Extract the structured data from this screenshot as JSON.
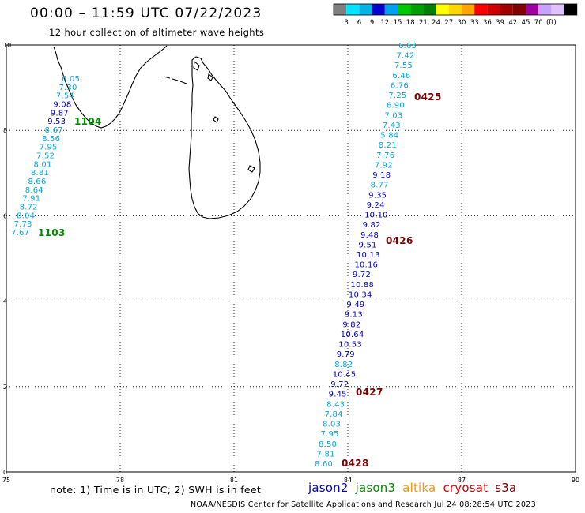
{
  "header": {
    "title": "00:00 – 11:59 UTC 07/22/2023",
    "subtitle": "12 hour collection of altimeter wave heights"
  },
  "colorbar": {
    "colors": [
      "#7f7f7f",
      "#00e5ff",
      "#00b5e5",
      "#0000d0",
      "#00a0f0",
      "#00c800",
      "#00a000",
      "#008000",
      "#ffff00",
      "#ffd700",
      "#ffa500",
      "#ff0000",
      "#d00000",
      "#a00000",
      "#800000",
      "#a000a0",
      "#c8a0ff",
      "#e0c0ff",
      "#000000"
    ],
    "ticks": [
      "3",
      "6",
      "9",
      "12",
      "15",
      "18",
      "21",
      "24",
      "27",
      "30",
      "33",
      "36",
      "39",
      "42",
      "45",
      "70",
      "(ft)"
    ]
  },
  "map": {
    "x_ticks": [
      "75",
      "78",
      "81",
      "84",
      "87",
      "90"
    ],
    "y_ticks": [
      "10",
      "8",
      "6",
      "4",
      "2",
      "0"
    ]
  },
  "colors": {
    "jason2": "#0000c8",
    "jason3": "#008c00",
    "altika": "#ff9600",
    "cryosat": "#e00000",
    "s3a": "#800000",
    "light_cyan": "#00a8e0",
    "land": "#000000"
  },
  "track_west": {
    "values": [
      {
        "v": "6.05",
        "c": "light_cyan"
      },
      {
        "v": "7.30",
        "c": "light_cyan"
      },
      {
        "v": "7.54",
        "c": "light_cyan"
      },
      {
        "v": "9.08",
        "c": "jason2"
      },
      {
        "v": "9.87",
        "c": "jason2"
      },
      {
        "v": "9.53",
        "c": "jason2"
      },
      {
        "v": "8.67",
        "c": "light_cyan"
      },
      {
        "v": "8.56",
        "c": "light_cyan"
      },
      {
        "v": "7.95",
        "c": "light_cyan"
      },
      {
        "v": "7.52",
        "c": "light_cyan"
      },
      {
        "v": "8.01",
        "c": "light_cyan"
      },
      {
        "v": "8.81",
        "c": "light_cyan"
      },
      {
        "v": "8.66",
        "c": "light_cyan"
      },
      {
        "v": "8.64",
        "c": "light_cyan"
      },
      {
        "v": "7.91",
        "c": "light_cyan"
      },
      {
        "v": "8.72",
        "c": "light_cyan"
      },
      {
        "v": "8.04",
        "c": "light_cyan"
      },
      {
        "v": "7.73",
        "c": "light_cyan"
      },
      {
        "v": "7.67",
        "c": "light_cyan"
      }
    ],
    "time_labels": [
      {
        "t": "1104",
        "c": "jason3"
      },
      {
        "t": "1103",
        "c": "jason3"
      }
    ]
  },
  "track_east": {
    "values": [
      {
        "v": "6.63",
        "c": "light_cyan"
      },
      {
        "v": "7.42",
        "c": "light_cyan"
      },
      {
        "v": "7.55",
        "c": "light_cyan"
      },
      {
        "v": "6.46",
        "c": "light_cyan"
      },
      {
        "v": "6.76",
        "c": "light_cyan"
      },
      {
        "v": "7.25",
        "c": "light_cyan"
      },
      {
        "v": "6.90",
        "c": "light_cyan"
      },
      {
        "v": "7.03",
        "c": "light_cyan"
      },
      {
        "v": "7.43",
        "c": "light_cyan"
      },
      {
        "v": "5.84",
        "c": "light_cyan"
      },
      {
        "v": "8.21",
        "c": "light_cyan"
      },
      {
        "v": "7.76",
        "c": "light_cyan"
      },
      {
        "v": "7.92",
        "c": "light_cyan"
      },
      {
        "v": "9.18",
        "c": "jason2"
      },
      {
        "v": "8.77",
        "c": "light_cyan"
      },
      {
        "v": "9.35",
        "c": "jason2"
      },
      {
        "v": "9.24",
        "c": "jason2"
      },
      {
        "v": "10.10",
        "c": "jason2"
      },
      {
        "v": "9.82",
        "c": "jason2"
      },
      {
        "v": "9.48",
        "c": "jason2"
      },
      {
        "v": "9.51",
        "c": "jason2"
      },
      {
        "v": "10.13",
        "c": "jason2"
      },
      {
        "v": "10.16",
        "c": "jason2"
      },
      {
        "v": "9.72",
        "c": "jason2"
      },
      {
        "v": "10.88",
        "c": "jason2"
      },
      {
        "v": "10.34",
        "c": "jason2"
      },
      {
        "v": "9.49",
        "c": "jason2"
      },
      {
        "v": "9.13",
        "c": "jason2"
      },
      {
        "v": "9.82",
        "c": "jason2"
      },
      {
        "v": "10.64",
        "c": "jason2"
      },
      {
        "v": "10.53",
        "c": "jason2"
      },
      {
        "v": "9.79",
        "c": "jason2"
      },
      {
        "v": "8.82",
        "c": "light_cyan"
      },
      {
        "v": "10.45",
        "c": "jason2"
      },
      {
        "v": "9.72",
        "c": "jason2"
      },
      {
        "v": "9.45",
        "c": "jason2"
      },
      {
        "v": "8.43",
        "c": "light_cyan"
      },
      {
        "v": "7.84",
        "c": "light_cyan"
      },
      {
        "v": "8.03",
        "c": "light_cyan"
      },
      {
        "v": "7.95",
        "c": "light_cyan"
      },
      {
        "v": "8.50",
        "c": "light_cyan"
      },
      {
        "v": "7.81",
        "c": "light_cyan"
      },
      {
        "v": "8.60",
        "c": "light_cyan"
      }
    ],
    "time_labels": [
      {
        "t": "0425",
        "c": "s3a"
      },
      {
        "t": "0426",
        "c": "s3a"
      },
      {
        "t": "0427",
        "c": "s3a"
      },
      {
        "t": "0428",
        "c": "s3a"
      }
    ]
  },
  "footer": {
    "note": "note: 1) Time is in UTC; 2) SWH is in feet",
    "legend": [
      {
        "name": "jason2",
        "c": "jason2"
      },
      {
        "name": "jason3",
        "c": "jason3"
      },
      {
        "name": "altika",
        "c": "altika"
      },
      {
        "name": "cryosat",
        "c": "cryosat"
      },
      {
        "name": "s3a",
        "c": "s3a"
      }
    ],
    "credit": "NOAA/NESDIS Center for Satellite Applications and Research   Jul 24 08:28:54 UTC 2023"
  }
}
